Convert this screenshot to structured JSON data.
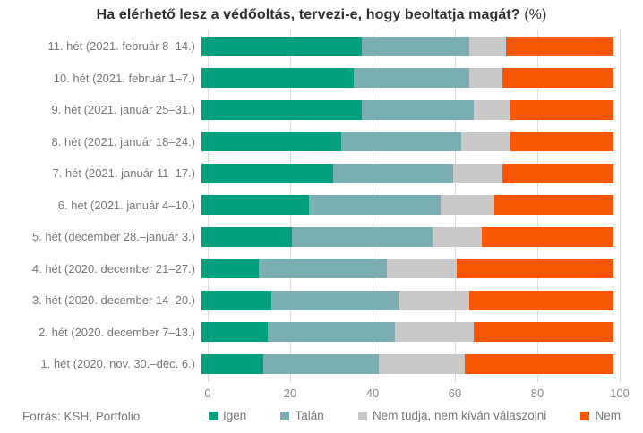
{
  "title": {
    "main": "Ha elérhető lesz a védőoltás, tervezi-e, hogy beoltatja magát?",
    "suffix": "(%)"
  },
  "source": "Forrás: KSH, Portfolio",
  "colors": {
    "igen": "#00a07d",
    "talan": "#7baeb3",
    "nem_tudja": "#c9c9c9",
    "nem": "#f95602",
    "grid": "#dcdcdc",
    "axis_text": "#85888b",
    "label_text": "#75787b",
    "title_text": "#2f2f2f"
  },
  "chart_data": {
    "type": "bar",
    "orientation": "horizontal",
    "stacked": true,
    "title": "Ha elérhető lesz a védőoltás, tervezi-e, hogy beoltatja magát? (%)",
    "xlabel": "",
    "ylabel": "",
    "xlim": [
      0,
      100
    ],
    "x_ticks": [
      0,
      20,
      40,
      60,
      80,
      100
    ],
    "grid": "vertical",
    "legend_position": "bottom",
    "categories": [
      "11. hét (2021. február 8–14.)",
      "10. hét (2021. február 1–7.)",
      "9. hét (2021. január 25–31.)",
      "8. hét (2021. január 18–24.)",
      "7. hét (2021. január 11–17.)",
      "6. hét (2021. január 4–10.)",
      "5. hét (december 28.–január 3.)",
      "4. hét (2020. december 21–27.)",
      "3. hét (2020. december 14–20.)",
      "2. hét (2020. december 7–13.)",
      "1. hét (2020. nov. 30.–dec. 6.)"
    ],
    "series": [
      {
        "key": "igen",
        "name": "Igen",
        "color": "#00a07d",
        "values": [
          39,
          37,
          39,
          34,
          32,
          26,
          22,
          14,
          17,
          16,
          15
        ]
      },
      {
        "key": "talan",
        "name": "Talán",
        "color": "#7baeb3",
        "values": [
          26,
          28,
          27,
          29,
          29,
          32,
          34,
          31,
          31,
          31,
          28
        ]
      },
      {
        "key": "nem_tudja",
        "name": "Nem tudja, nem kíván válaszolni",
        "color": "#c9c9c9",
        "values": [
          9,
          8,
          9,
          12,
          12,
          13,
          12,
          17,
          17,
          19,
          21
        ]
      },
      {
        "key": "nem",
        "name": "Nem",
        "color": "#f95602",
        "values": [
          26,
          27,
          25,
          25,
          27,
          29,
          32,
          38,
          35,
          34,
          36
        ]
      }
    ]
  }
}
